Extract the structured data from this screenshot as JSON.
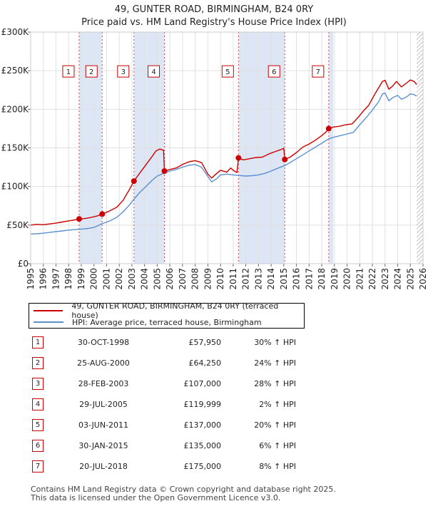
{
  "title_line1": "49, GUNTER ROAD, BIRMINGHAM, B24 0RY",
  "title_line2": "Price paid vs. HM Land Registry's House Price Index (HPI)",
  "colors": {
    "property": "#cc0000",
    "hpi": "#5b8fcf",
    "grid": "#e0e0e0",
    "shade": "#dde6f5",
    "plot_bg": "#ffffff",
    "vline": "#dd4444",
    "hatch": "#999999"
  },
  "chart_data": {
    "type": "line",
    "title": "Price paid vs. HM Land Registry's House Price Index (HPI)",
    "xlim": [
      1995,
      2026
    ],
    "ylim": [
      0,
      300000
    ],
    "y_ticks": [
      0,
      50000,
      100000,
      150000,
      200000,
      250000,
      300000
    ],
    "y_tick_labels": [
      "£0",
      "£50K",
      "£100K",
      "£150K",
      "£200K",
      "£250K",
      "£300K"
    ],
    "x_ticks": [
      1995,
      1996,
      1997,
      1998,
      1999,
      2000,
      2001,
      2002,
      2003,
      2004,
      2005,
      2006,
      2007,
      2008,
      2009,
      2010,
      2011,
      2012,
      2013,
      2014,
      2015,
      2016,
      2017,
      2018,
      2019,
      2020,
      2021,
      2022,
      2023,
      2024,
      2025,
      2026
    ],
    "x_tick_labels": [
      "1995",
      "1996",
      "1997",
      "1998",
      "1999",
      "2000",
      "2001",
      "2002",
      "2003",
      "2004",
      "2005",
      "2006",
      "2007",
      "2008",
      "2009",
      "2010",
      "2011",
      "2012",
      "2013",
      "2014",
      "2015",
      "2016",
      "2017",
      "2018",
      "2019",
      "2020",
      "2021",
      "2022",
      "2023",
      "2024",
      "2025",
      "2026"
    ],
    "shaded_periods": [
      [
        1998.83,
        2000.65
      ],
      [
        2003.16,
        2005.57
      ],
      [
        2011.42,
        2015.08
      ],
      [
        2018.55,
        2018.9
      ]
    ],
    "data_end": 2025.5,
    "series": [
      {
        "name": "49, GUNTER ROAD, BIRMINGHAM, B24 0RY (terraced house)",
        "points": [
          [
            1995.0,
            50000
          ],
          [
            1995.5,
            51000
          ],
          [
            1996.0,
            50500
          ],
          [
            1996.5,
            51500
          ],
          [
            1997.0,
            52500
          ],
          [
            1997.5,
            54000
          ],
          [
            1998.0,
            55500
          ],
          [
            1998.5,
            56800
          ],
          [
            1998.83,
            57950
          ],
          [
            1999.3,
            58500
          ],
          [
            1999.8,
            60000
          ],
          [
            2000.3,
            62000
          ],
          [
            2000.65,
            64250
          ],
          [
            2001.2,
            68000
          ],
          [
            2001.8,
            73000
          ],
          [
            2002.3,
            82000
          ],
          [
            2002.8,
            96000
          ],
          [
            2003.16,
            107000
          ],
          [
            2003.6,
            117000
          ],
          [
            2004.1,
            128000
          ],
          [
            2004.6,
            139000
          ],
          [
            2004.9,
            146000
          ],
          [
            2005.2,
            148500
          ],
          [
            2005.5,
            147000
          ],
          [
            2005.57,
            119999
          ],
          [
            2006.0,
            122000
          ],
          [
            2006.5,
            124000
          ],
          [
            2007.0,
            128500
          ],
          [
            2007.5,
            132000
          ],
          [
            2008.0,
            133500
          ],
          [
            2008.5,
            131000
          ],
          [
            2009.0,
            116000
          ],
          [
            2009.3,
            111000
          ],
          [
            2009.7,
            117000
          ],
          [
            2010.0,
            121000
          ],
          [
            2010.5,
            118500
          ],
          [
            2010.8,
            124000
          ],
          [
            2011.0,
            121000
          ],
          [
            2011.3,
            118000
          ],
          [
            2011.42,
            137000
          ],
          [
            2011.8,
            134500
          ],
          [
            2012.3,
            136000
          ],
          [
            2012.8,
            137500
          ],
          [
            2013.3,
            138000
          ],
          [
            2013.8,
            142000
          ],
          [
            2014.3,
            145000
          ],
          [
            2014.8,
            148000
          ],
          [
            2015.0,
            149500
          ],
          [
            2015.08,
            135000
          ],
          [
            2015.5,
            138000
          ],
          [
            2016.0,
            144000
          ],
          [
            2016.5,
            151000
          ],
          [
            2017.0,
            155000
          ],
          [
            2017.5,
            160000
          ],
          [
            2018.0,
            166000
          ],
          [
            2018.3,
            170000
          ],
          [
            2018.55,
            175000
          ],
          [
            2018.9,
            177000
          ],
          [
            2019.4,
            178000
          ],
          [
            2019.9,
            180000
          ],
          [
            2020.4,
            181000
          ],
          [
            2020.9,
            190000
          ],
          [
            2021.3,
            198000
          ],
          [
            2021.7,
            205000
          ],
          [
            2022.1,
            217000
          ],
          [
            2022.5,
            228000
          ],
          [
            2022.8,
            236000
          ],
          [
            2023.0,
            237500
          ],
          [
            2023.3,
            226000
          ],
          [
            2023.6,
            230000
          ],
          [
            2023.9,
            236000
          ],
          [
            2024.3,
            229000
          ],
          [
            2024.7,
            234000
          ],
          [
            2025.0,
            238000
          ],
          [
            2025.3,
            236000
          ],
          [
            2025.5,
            232000
          ]
        ]
      },
      {
        "name": "HPI: Average price, terraced house, Birmingham",
        "points": [
          [
            1995.0,
            38500
          ],
          [
            1995.5,
            38800
          ],
          [
            1996.0,
            39500
          ],
          [
            1996.5,
            40500
          ],
          [
            1997.0,
            41500
          ],
          [
            1997.5,
            42500
          ],
          [
            1998.0,
            43500
          ],
          [
            1998.5,
            44200
          ],
          [
            1998.83,
            44600
          ],
          [
            1999.5,
            45500
          ],
          [
            2000.0,
            47000
          ],
          [
            2000.65,
            51800
          ],
          [
            2001.2,
            55000
          ],
          [
            2001.8,
            60000
          ],
          [
            2002.3,
            67000
          ],
          [
            2002.8,
            76000
          ],
          [
            2003.16,
            83500
          ],
          [
            2003.6,
            92000
          ],
          [
            2004.1,
            100000
          ],
          [
            2004.6,
            108000
          ],
          [
            2005.0,
            113500
          ],
          [
            2005.57,
            117500
          ],
          [
            2006.0,
            120000
          ],
          [
            2006.5,
            122000
          ],
          [
            2007.0,
            125000
          ],
          [
            2007.5,
            127500
          ],
          [
            2008.0,
            128500
          ],
          [
            2008.5,
            125000
          ],
          [
            2009.0,
            113000
          ],
          [
            2009.3,
            106000
          ],
          [
            2009.7,
            110000
          ],
          [
            2010.0,
            115000
          ],
          [
            2010.5,
            116000
          ],
          [
            2011.0,
            115000
          ],
          [
            2011.42,
            114300
          ],
          [
            2012.0,
            113500
          ],
          [
            2012.5,
            114000
          ],
          [
            2013.0,
            115000
          ],
          [
            2013.5,
            117000
          ],
          [
            2014.0,
            120000
          ],
          [
            2014.5,
            123500
          ],
          [
            2015.08,
            127200
          ],
          [
            2015.5,
            131000
          ],
          [
            2016.0,
            136000
          ],
          [
            2016.5,
            141000
          ],
          [
            2017.0,
            146000
          ],
          [
            2017.5,
            151000
          ],
          [
            2018.0,
            156000
          ],
          [
            2018.55,
            161800
          ],
          [
            2019.0,
            164000
          ],
          [
            2019.5,
            166000
          ],
          [
            2020.0,
            168000
          ],
          [
            2020.5,
            170000
          ],
          [
            2021.0,
            180000
          ],
          [
            2021.5,
            189000
          ],
          [
            2022.0,
            199000
          ],
          [
            2022.5,
            210000
          ],
          [
            2022.8,
            220000
          ],
          [
            2023.0,
            221000
          ],
          [
            2023.3,
            211000
          ],
          [
            2023.6,
            215000
          ],
          [
            2024.0,
            218000
          ],
          [
            2024.3,
            213000
          ],
          [
            2024.7,
            216000
          ],
          [
            2025.0,
            220000
          ],
          [
            2025.3,
            219000
          ],
          [
            2025.5,
            217000
          ]
        ]
      }
    ],
    "sales": [
      {
        "n": "1",
        "x": 1998.83,
        "price": 57950
      },
      {
        "n": "2",
        "x": 2000.65,
        "price": 64250
      },
      {
        "n": "3",
        "x": 2003.16,
        "price": 107000
      },
      {
        "n": "4",
        "x": 2005.57,
        "price": 119999
      },
      {
        "n": "5",
        "x": 2011.42,
        "price": 137000
      },
      {
        "n": "6",
        "x": 2015.08,
        "price": 135000
      },
      {
        "n": "7",
        "x": 2018.55,
        "price": 175000
      }
    ],
    "marker_label_y": 250000
  },
  "legend": {
    "property_label": "49, GUNTER ROAD, BIRMINGHAM, B24 0RY (terraced house)",
    "hpi_label": "HPI: Average price, terraced house, Birmingham"
  },
  "table": [
    {
      "n": "1",
      "date": "30-OCT-1998",
      "price": "£57,950",
      "hpi": "30% ↑ HPI"
    },
    {
      "n": "2",
      "date": "25-AUG-2000",
      "price": "£64,250",
      "hpi": "24% ↑ HPI"
    },
    {
      "n": "3",
      "date": "28-FEB-2003",
      "price": "£107,000",
      "hpi": "28% ↑ HPI"
    },
    {
      "n": "4",
      "date": "29-JUL-2005",
      "price": "£119,999",
      "hpi": "2% ↑ HPI"
    },
    {
      "n": "5",
      "date": "03-JUN-2011",
      "price": "£137,000",
      "hpi": "20% ↑ HPI"
    },
    {
      "n": "6",
      "date": "30-JAN-2015",
      "price": "£135,000",
      "hpi": "6% ↑ HPI"
    },
    {
      "n": "7",
      "date": "20-JUL-2018",
      "price": "£175,000",
      "hpi": "8% ↑ HPI"
    }
  ],
  "footer": {
    "line1": "Contains HM Land Registry data © Crown copyright and database right 2025.",
    "line2": "This data is licensed under the Open Government Licence v3.0."
  }
}
